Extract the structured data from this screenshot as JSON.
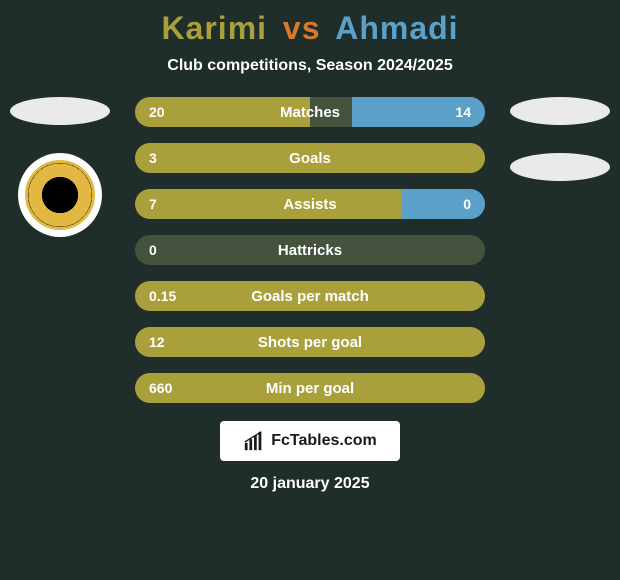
{
  "background_color": "#1f2d2b",
  "title": {
    "player1": "Karimi",
    "vs": "vs",
    "player2": "Ahmadi",
    "player1_color": "#a9a03b",
    "vs_color": "#d87a2c",
    "player2_color": "#5aa0c8"
  },
  "subtitle": "Club competitions, Season 2024/2025",
  "colors": {
    "bar_empty": "#45523e",
    "fill_player1": "#a9a03b",
    "fill_player2": "#5aa0c8",
    "text": "#ffffff",
    "ellipse": "#eaeaea"
  },
  "stats": [
    {
      "label": "Matches",
      "left_val": "20",
      "right_val": "14",
      "left_pct": 50,
      "right_pct": 38
    },
    {
      "label": "Goals",
      "left_val": "3",
      "right_val": "",
      "left_pct": 100,
      "right_pct": 0
    },
    {
      "label": "Assists",
      "left_val": "7",
      "right_val": "0",
      "left_pct": 76,
      "right_pct": 24
    },
    {
      "label": "Hattricks",
      "left_val": "0",
      "right_val": "",
      "left_pct": 0,
      "right_pct": 0
    },
    {
      "label": "Goals per match",
      "left_val": "0.15",
      "right_val": "",
      "left_pct": 100,
      "right_pct": 0
    },
    {
      "label": "Shots per goal",
      "left_val": "12",
      "right_val": "",
      "left_pct": 100,
      "right_pct": 0
    },
    {
      "label": "Min per goal",
      "left_val": "660",
      "right_val": "",
      "left_pct": 100,
      "right_pct": 0
    }
  ],
  "footer": {
    "brand": "FcTables.com"
  },
  "date": "20 january 2025"
}
